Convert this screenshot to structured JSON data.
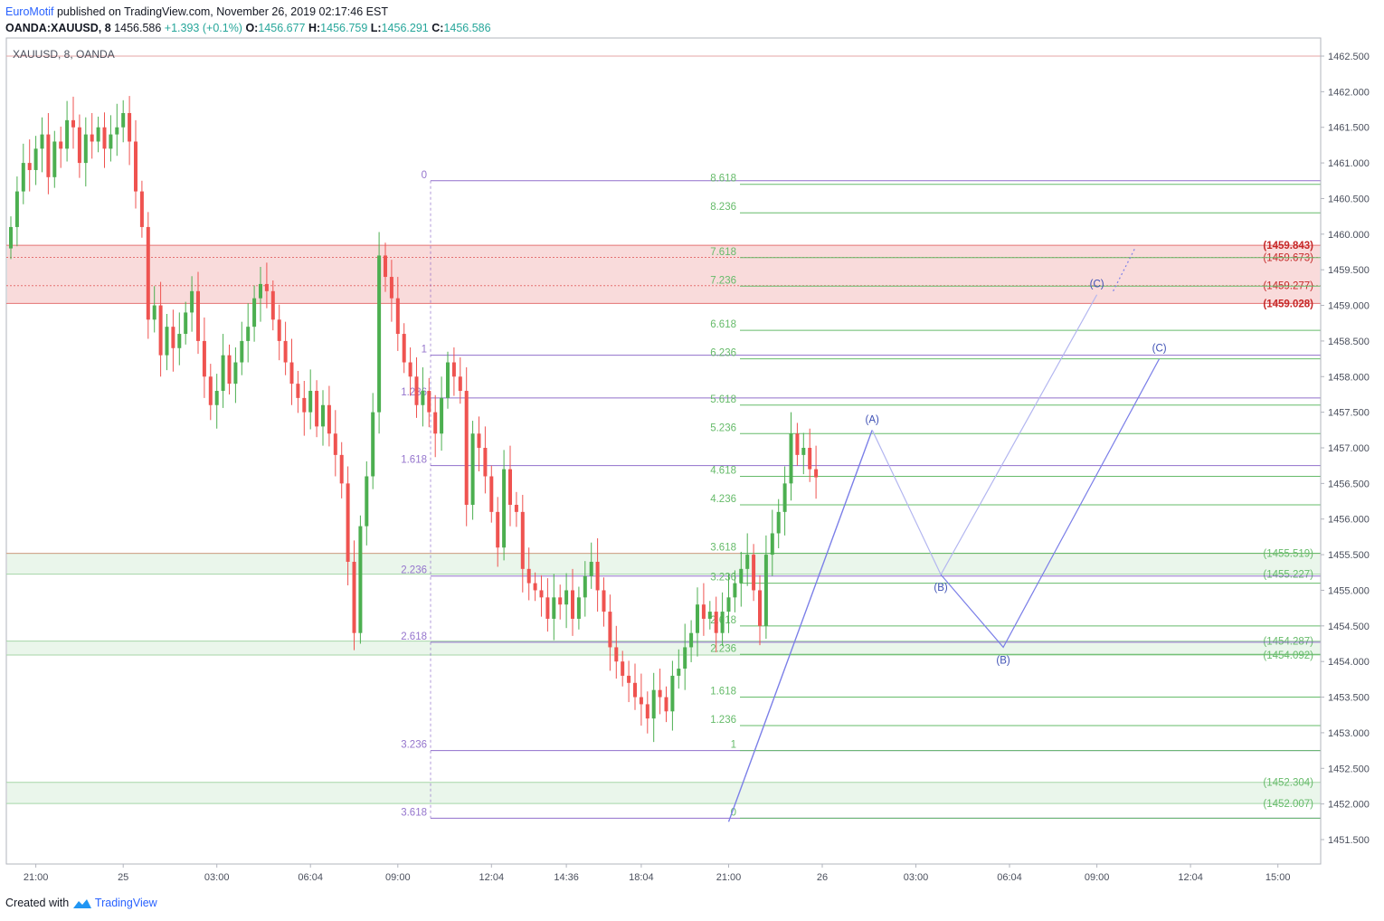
{
  "header": {
    "author": "EuroMotif",
    "published_text": "published on TradingView.com, November 26, 2019 02:17:46 EST",
    "symbol": "OANDA:XAUUSD, 8",
    "price": "1456.586",
    "change": "+1.393 (+0.1%)",
    "o_label": "O:",
    "o_value": "1456.677",
    "h_label": "H:",
    "h_value": "1456.759",
    "l_label": "L:",
    "l_value": "1456.291",
    "c_label": "C:",
    "c_value": "1456.586"
  },
  "footer": {
    "created_with": "Created with",
    "brand": "TradingView"
  },
  "colors": {
    "up": "#4caf50",
    "down": "#ef5350",
    "purple": "#7e57c2",
    "green": "#66bb6a",
    "red_zone": "#f8d7d7",
    "green_zone": "#e8f5e9",
    "pattern": "#7b7fe8",
    "zone_red_text": "#c62828"
  },
  "chart_data": {
    "type": "candlestick",
    "title": "XAUUSD, 8, OANDA",
    "ylim": [
      1451.2,
      1462.7
    ],
    "y_ticks": [
      "1451.500",
      "1452.000",
      "1452.500",
      "1453.000",
      "1453.500",
      "1454.000",
      "1454.500",
      "1455.000",
      "1455.500",
      "1456.000",
      "1456.500",
      "1457.000",
      "1457.500",
      "1458.000",
      "1458.500",
      "1459.000",
      "1459.500",
      "1460.000",
      "1460.500",
      "1461.000",
      "1461.500",
      "1462.000",
      "1462.500"
    ],
    "x_ticks": [
      {
        "label": "21:00",
        "i": 4
      },
      {
        "label": "25",
        "i": 18
      },
      {
        "label": "03:00",
        "i": 33
      },
      {
        "label": "06:04",
        "i": 48
      },
      {
        "label": "09:00",
        "i": 62
      },
      {
        "label": "12:04",
        "i": 77
      },
      {
        "label": "14:36",
        "i": 89
      },
      {
        "label": "18:04",
        "i": 101
      },
      {
        "label": "21:00",
        "i": 115
      },
      {
        "label": "26",
        "i": 130
      },
      {
        "label": "03:00",
        "i": 145
      },
      {
        "label": "06:04",
        "i": 160
      },
      {
        "label": "09:00",
        "i": 174
      },
      {
        "label": "12:04",
        "i": 189
      },
      {
        "label": "15:00",
        "i": 203
      }
    ],
    "closes": [
      1460.1,
      1460.6,
      1461.0,
      1460.9,
      1461.2,
      1461.4,
      1460.8,
      1461.3,
      1461.2,
      1461.6,
      1461.5,
      1461.0,
      1461.4,
      1461.3,
      1461.5,
      1461.2,
      1461.4,
      1461.5,
      1461.7,
      1461.3,
      1460.6,
      1460.1,
      1458.8,
      1459.0,
      1458.3,
      1458.7,
      1458.4,
      1458.6,
      1458.9,
      1459.2,
      1458.5,
      1458.0,
      1457.6,
      1457.8,
      1458.3,
      1457.9,
      1458.2,
      1458.5,
      1458.7,
      1459.1,
      1459.3,
      1459.2,
      1458.8,
      1458.5,
      1458.2,
      1457.9,
      1457.7,
      1457.5,
      1457.8,
      1457.3,
      1457.6,
      1457.2,
      1456.9,
      1456.5,
      1455.4,
      1454.4,
      1455.9,
      1456.6,
      1457.5,
      1459.7,
      1459.4,
      1459.1,
      1458.6,
      1458.2,
      1458.0,
      1457.6,
      1457.8,
      1457.5,
      1457.2,
      1457.7,
      1458.2,
      1458.0,
      1457.8,
      1456.2,
      1457.2,
      1457.0,
      1456.6,
      1456.1,
      1455.6,
      1456.7,
      1456.2,
      1456.1,
      1455.3,
      1455.1,
      1455.0,
      1454.9,
      1454.6,
      1454.9,
      1454.8,
      1455.0,
      1454.6,
      1454.9,
      1455.2,
      1455.4,
      1455.0,
      1454.7,
      1454.2,
      1454.0,
      1453.8,
      1453.7,
      1453.5,
      1453.4,
      1453.2,
      1453.6,
      1453.5,
      1453.3,
      1453.8,
      1453.9,
      1454.2,
      1454.4,
      1454.8,
      1454.6,
      1454.7,
      1454.4,
      1454.7,
      1454.9,
      1455.1,
      1455.3,
      1455.5,
      1455.0,
      1454.5,
      1455.5,
      1455.8,
      1456.1,
      1456.5,
      1457.2,
      1456.9,
      1457.0,
      1456.7,
      1456.586
    ],
    "fib_left": {
      "levels": [
        {
          "label": "0",
          "price": 1460.75
        },
        {
          "label": "1",
          "price": 1458.3
        },
        {
          "label": "1.236",
          "price": 1457.7
        },
        {
          "label": "1.618",
          "price": 1456.75
        },
        {
          "label": "2.236",
          "price": 1455.2
        },
        {
          "label": "2.618",
          "price": 1454.27
        },
        {
          "label": "3.236",
          "price": 1452.75
        },
        {
          "label": "3.618",
          "price": 1451.8
        }
      ]
    },
    "fib_right": {
      "levels": [
        {
          "label": "0",
          "price": 1451.8
        },
        {
          "label": "1",
          "price": 1452.75
        },
        {
          "label": "1.236",
          "price": 1453.1
        },
        {
          "label": "1.618",
          "price": 1453.5
        },
        {
          "label": "2.236",
          "price": 1454.1
        },
        {
          "label": "2.618",
          "price": 1454.5
        },
        {
          "label": "3.236",
          "price": 1455.1
        },
        {
          "label": "3.618",
          "price": 1455.52
        },
        {
          "label": "4.236",
          "price": 1456.2
        },
        {
          "label": "4.618",
          "price": 1456.6
        },
        {
          "label": "5.236",
          "price": 1457.2
        },
        {
          "label": "5.618",
          "price": 1457.6
        },
        {
          "label": "6.236",
          "price": 1458.25
        },
        {
          "label": "6.618",
          "price": 1458.65
        },
        {
          "label": "7.236",
          "price": 1459.27
        },
        {
          "label": "7.618",
          "price": 1459.67
        },
        {
          "label": "8.236",
          "price": 1460.3
        },
        {
          "label": "8.618",
          "price": 1460.7
        }
      ]
    },
    "zones": [
      {
        "kind": "red",
        "top": 1459.843,
        "bottom": 1459.028,
        "labels": [
          "(1459.843)",
          "(1459.673)",
          "(1459.277)",
          "(1459.028)"
        ],
        "label_prices": [
          1459.843,
          1459.673,
          1459.277,
          1459.028
        ]
      },
      {
        "kind": "green",
        "top": 1455.519,
        "bottom": 1455.227,
        "labels": [
          "(1455.519)",
          "(1455.227)"
        ],
        "label_prices": [
          1455.519,
          1455.227
        ]
      },
      {
        "kind": "green",
        "top": 1454.287,
        "bottom": 1454.092,
        "labels": [
          "(1454.287)",
          "(1454.092)"
        ],
        "label_prices": [
          1454.287,
          1454.092
        ]
      },
      {
        "kind": "green",
        "top": 1452.304,
        "bottom": 1452.007,
        "labels": [
          "(1452.304)",
          "(1452.007)"
        ],
        "label_prices": [
          1452.304,
          1452.007
        ]
      }
    ],
    "wave_labels": {
      "a": "(A)",
      "b": "(B)",
      "c": "(C)"
    },
    "wave_a": [
      {
        "i": 115,
        "price": 1451.75
      },
      {
        "i": 138,
        "price": 1457.25
      }
    ],
    "wave_alt1": [
      {
        "i": 138,
        "price": 1457.25
      },
      {
        "i": 149,
        "price": 1455.22
      },
      {
        "i": 174,
        "price": 1459.15
      }
    ],
    "wave_alt2": [
      {
        "i": 149,
        "price": 1455.22
      },
      {
        "i": 159,
        "price": 1454.2
      },
      {
        "i": 184,
        "price": 1458.25
      }
    ]
  }
}
